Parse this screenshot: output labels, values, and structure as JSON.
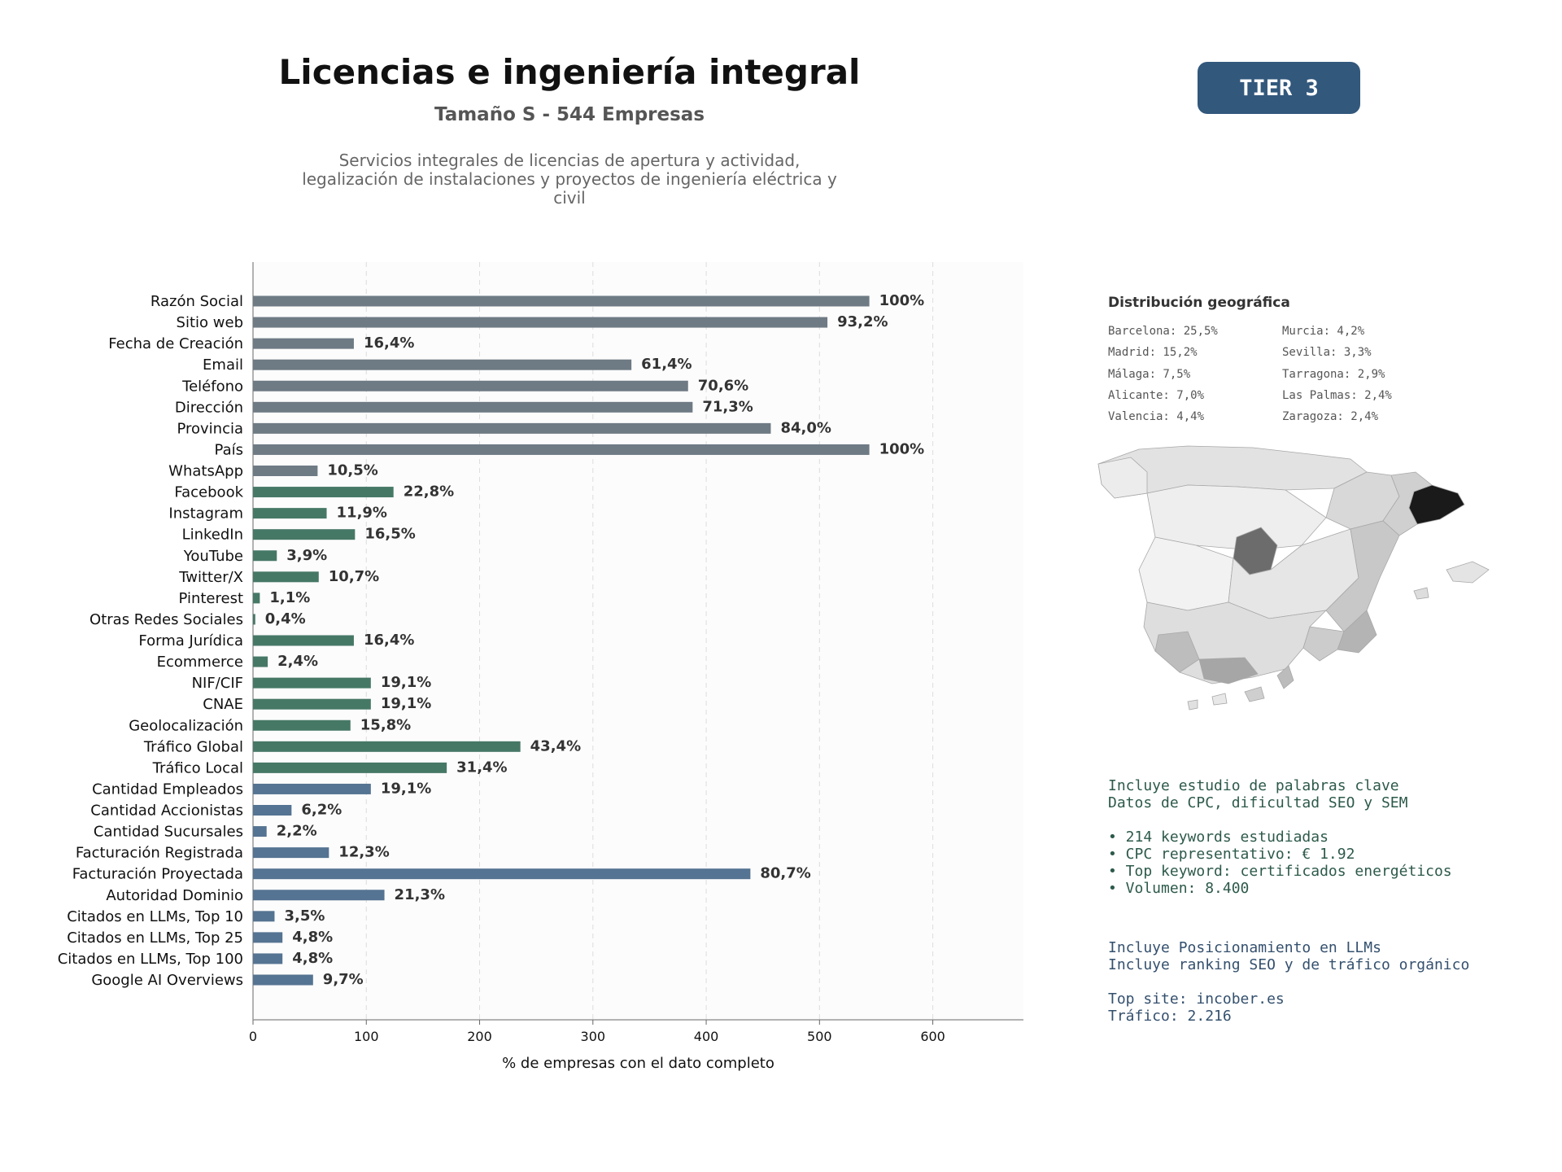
{
  "header": {
    "title": "Licencias e ingeniería integral",
    "subtitle": "Tamaño S - 544 Empresas",
    "description_lines": [
      "Servicios integrales de licencias de apertura y actividad,",
      "legalización de instalaciones y proyectos de ingeniería eléctrica y",
      "civil"
    ],
    "tier_badge": "TIER 3"
  },
  "colors": {
    "gray_bar": "#6e7a84",
    "green_bar": "#467866",
    "blue_bar": "#557392",
    "badge": "#32587c"
  },
  "chart_data": {
    "type": "bar",
    "orientation": "horizontal",
    "xlabel": "% de empresas con el dato completo",
    "xlim": [
      0,
      680
    ],
    "xticks": [
      0,
      100,
      200,
      300,
      400,
      500,
      600
    ],
    "grid": "vertical dashed",
    "categories": [
      "Razón Social",
      "Sitio web",
      "Fecha de Creación",
      "Email",
      "Teléfono",
      "Dirección",
      "Provincia",
      "País",
      "WhatsApp",
      "Facebook",
      "Instagram",
      "LinkedIn",
      "YouTube",
      "Twitter/X",
      "Pinterest",
      "Otras Redes Sociales",
      "Forma Jurídica",
      "Ecommerce",
      "NIF/CIF",
      "CNAE",
      "Geolocalización",
      "Tráfico Global",
      "Tráfico Local",
      "Cantidad Empleados",
      "Cantidad Accionistas",
      "Cantidad Sucursales",
      "Facturación Registrada",
      "Facturación Proyectada",
      "Autoridad Dominio",
      "Citados en LLMs, Top 10",
      "Citados en LLMs, Top 25",
      "Citados en LLMs, Top 100",
      "Google AI Overviews"
    ],
    "values": [
      544,
      507,
      89,
      334,
      384,
      388,
      457,
      544,
      57,
      124,
      65,
      90,
      21,
      58,
      6,
      2,
      89,
      13,
      104,
      104,
      86,
      236,
      171,
      104,
      34,
      12,
      67,
      439,
      116,
      19,
      26,
      26,
      53
    ],
    "labels": [
      "100%",
      "93,2%",
      "16,4%",
      "61,4%",
      "70,6%",
      "71,3%",
      "84,0%",
      "100%",
      "10,5%",
      "22,8%",
      "11,9%",
      "16,5%",
      "3,9%",
      "10,7%",
      "1,1%",
      "0,4%",
      "16,4%",
      "2,4%",
      "19,1%",
      "19,1%",
      "15,8%",
      "43,4%",
      "31,4%",
      "19,1%",
      "6,2%",
      "2,2%",
      "12,3%",
      "80,7%",
      "21,3%",
      "3,5%",
      "4,8%",
      "4,8%",
      "9,7%"
    ],
    "groups": [
      "gray",
      "gray",
      "gray",
      "gray",
      "gray",
      "gray",
      "gray",
      "gray",
      "gray",
      "green",
      "green",
      "green",
      "green",
      "green",
      "green",
      "green",
      "green",
      "green",
      "green",
      "green",
      "green",
      "green",
      "green",
      "blue",
      "blue",
      "blue",
      "blue",
      "blue",
      "blue",
      "blue",
      "blue",
      "blue",
      "blue"
    ]
  },
  "geo": {
    "title": "Distribución geográfica",
    "left_column": [
      "Barcelona: 25,5%",
      "Madrid: 15,2%",
      "Málaga: 7,5%",
      "Alicante: 7,0%",
      "Valencia: 4,4%"
    ],
    "right_column": [
      "Murcia: 4,2%",
      "Sevilla: 3,3%",
      "Tarragona: 2,9%",
      "Las Palmas: 2,4%",
      "Zaragoza: 2,4%"
    ]
  },
  "seo": {
    "lines": [
      "Incluye estudio de palabras clave",
      "Datos de CPC, dificultad SEO y SEM"
    ],
    "bullets": [
      "• 214 keywords estudiadas",
      "• CPC representativo: € 1.92",
      "• Top keyword: certificados energéticos",
      "• Volumen: 8.400"
    ]
  },
  "llm": {
    "lines": [
      "Incluye Posicionamiento en LLMs",
      "Incluye ranking SEO y de tráfico orgánico"
    ],
    "top_site": "Top site: incober.es",
    "traffic": "Tráfico: 2.216"
  }
}
